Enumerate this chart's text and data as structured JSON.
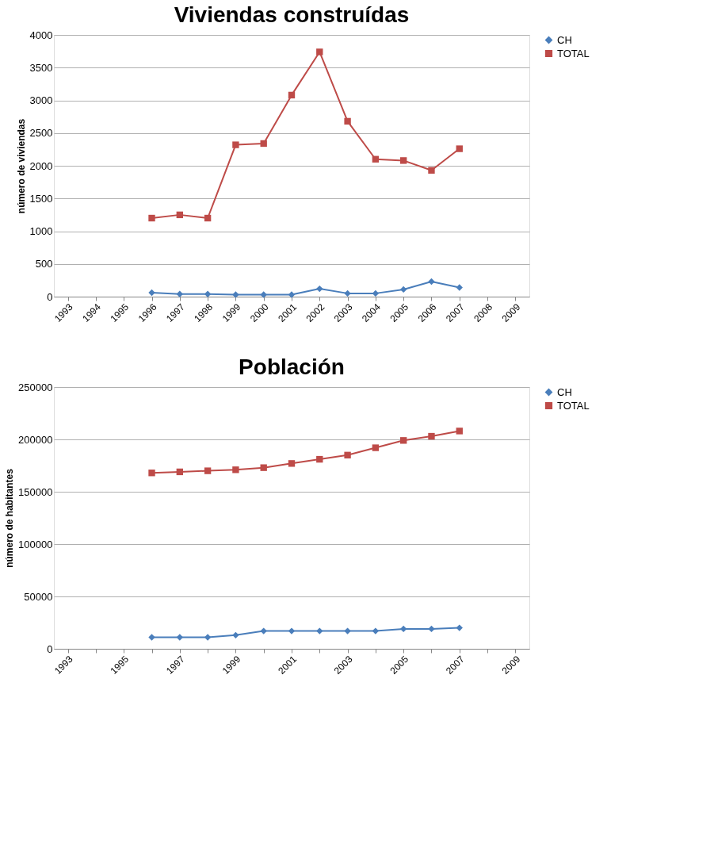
{
  "chart_data": [
    {
      "type": "line",
      "title": "Viviendas construídas",
      "ylabel": "número de viviendas",
      "categories": [
        "1993",
        "1994",
        "1995",
        "1996",
        "1997",
        "1998",
        "1999",
        "2000",
        "2001",
        "2002",
        "2003",
        "2004",
        "2005",
        "2006",
        "2007",
        "2008",
        "2009"
      ],
      "series": [
        {
          "name": "CH",
          "color": "#4a7ebb",
          "marker": "diamond",
          "values": [
            null,
            null,
            null,
            60,
            40,
            40,
            30,
            30,
            30,
            120,
            50,
            50,
            110,
            230,
            140,
            null,
            null
          ]
        },
        {
          "name": "TOTAL",
          "color": "#be4b48",
          "marker": "square",
          "values": [
            null,
            null,
            null,
            1200,
            1250,
            1200,
            2320,
            2340,
            3080,
            3740,
            2680,
            2100,
            2080,
            1930,
            2260,
            null,
            null
          ]
        }
      ],
      "ylim": [
        0,
        4000
      ],
      "yticks": [
        0,
        500,
        1000,
        1500,
        2000,
        2500,
        3000,
        3500,
        4000
      ],
      "grid": "y",
      "legend": "right"
    },
    {
      "type": "line",
      "title": "Población",
      "ylabel": "número de habitantes",
      "categories": [
        "1993",
        null,
        "1995",
        null,
        "1997",
        null,
        "1999",
        null,
        "2001",
        null,
        "2003",
        null,
        "2005",
        null,
        "2007",
        null,
        "2009"
      ],
      "series": [
        {
          "name": "CH",
          "color": "#4a7ebb",
          "marker": "diamond",
          "values": [
            null,
            null,
            null,
            11000,
            11000,
            11000,
            13000,
            17000,
            17000,
            17000,
            17000,
            17000,
            19000,
            19000,
            20000,
            null,
            null
          ]
        },
        {
          "name": "TOTAL",
          "color": "#be4b48",
          "marker": "square",
          "values": [
            null,
            null,
            null,
            168000,
            169000,
            170000,
            171000,
            173000,
            177000,
            181000,
            185000,
            192000,
            199000,
            203000,
            208000,
            null,
            null
          ]
        }
      ],
      "ylim": [
        0,
        250000
      ],
      "yticks": [
        0,
        50000,
        100000,
        150000,
        200000,
        250000
      ],
      "grid": "y",
      "legend": "right"
    }
  ]
}
